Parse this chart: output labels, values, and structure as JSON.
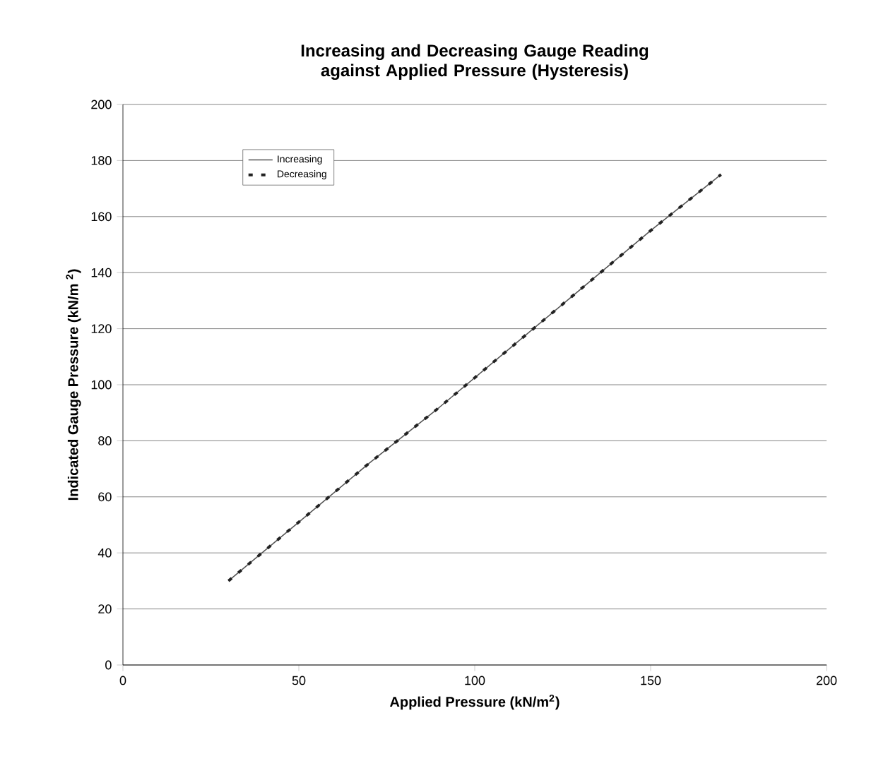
{
  "chart_data": {
    "type": "line",
    "title": "Increasing and Decreasing Gauge Reading against Applied Pressure (Hysteresis)",
    "xlabel": "Applied Pressure (kN/m$^{2}$)",
    "ylabel": "Indicated Gauge Pressure (kN/m $^{2}$)",
    "x": [
      30,
      50,
      70,
      90,
      110,
      130,
      150,
      170
    ],
    "series": [
      {
        "name": "Increasing",
        "color": "#555555",
        "line_style": "solid",
        "values": [
          30,
          51,
          72,
          92,
          113,
          134,
          155,
          175
        ]
      },
      {
        "name": "Decreasing",
        "color": "#222222",
        "line_style": "dashed",
        "values": [
          30,
          51,
          72,
          92,
          113,
          134,
          155,
          175
        ]
      }
    ],
    "xlim": [
      0,
      200
    ],
    "ylim": [
      0,
      200
    ],
    "xticks": [
      0,
      50,
      100,
      150,
      200
    ],
    "yticks": [
      0,
      20,
      40,
      60,
      80,
      100,
      120,
      140,
      160,
      180,
      200
    ],
    "grid": "y",
    "legend": "top left",
    "marker": "none"
  }
}
